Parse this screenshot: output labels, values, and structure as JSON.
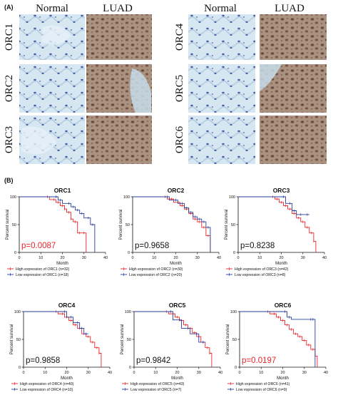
{
  "panel_a": {
    "label": "(A)",
    "column_headers": [
      "Normal",
      "LUAD",
      "Normal",
      "LUAD"
    ],
    "rows_left": [
      "ORC1",
      "ORC2",
      "ORC3"
    ],
    "rows_right": [
      "ORC4",
      "ORC5",
      "ORC6"
    ]
  },
  "panel_b": {
    "label": "(B)"
  },
  "colors": {
    "high": "#e8262a",
    "low": "#2a3d9a",
    "normal_tissue_bg": "#d6e7f2",
    "normal_tissue_cell": "#4a5ea8",
    "luad_tissue_bg": "#a9927f",
    "luad_tissue_cell": "#6e4a3e"
  },
  "chart_data": [
    {
      "type": "line",
      "title": "ORC1",
      "ylabel": "Percent survival",
      "xlabel": "Month",
      "xlim": [
        0,
        40
      ],
      "ylim": [
        0,
        100
      ],
      "xticks": [
        0,
        10,
        20,
        30,
        40
      ],
      "yticks": [
        0,
        50,
        100
      ],
      "pvalue": "p=0.0087",
      "pvalue_significant": true,
      "series": [
        {
          "name": "High expression of ORC1 (n=32)",
          "color": "high",
          "x": [
            0,
            14,
            17,
            19,
            21,
            22,
            24,
            25,
            27,
            29,
            31
          ],
          "y": [
            100,
            95,
            90,
            84,
            78,
            72,
            60,
            55,
            35,
            35,
            0
          ]
        },
        {
          "name": "Low expression of ORC1 (n=18)",
          "color": "low",
          "x": [
            0,
            18,
            20,
            24,
            26,
            28,
            30,
            33,
            35
          ],
          "y": [
            100,
            94,
            88,
            82,
            76,
            70,
            62,
            50,
            0
          ]
        }
      ]
    },
    {
      "type": "line",
      "title": "ORC2",
      "ylabel": "Percent survival",
      "xlabel": "Month",
      "xlim": [
        0,
        40
      ],
      "ylim": [
        0,
        100
      ],
      "xticks": [
        0,
        10,
        20,
        30,
        40
      ],
      "yticks": [
        0,
        50,
        100
      ],
      "pvalue": "p=0.9658",
      "pvalue_significant": false,
      "series": [
        {
          "name": "High expression of ORC2 (n=30)",
          "color": "high",
          "x": [
            0,
            16,
            19,
            22,
            24,
            26,
            28,
            30,
            32,
            34,
            36
          ],
          "y": [
            100,
            96,
            90,
            84,
            78,
            70,
            60,
            55,
            45,
            30,
            0
          ]
        },
        {
          "name": "Low expression of ORC2 (n=20)",
          "color": "low",
          "x": [
            0,
            17,
            21,
            24,
            26,
            28,
            30,
            32,
            34,
            36
          ],
          "y": [
            100,
            94,
            88,
            80,
            72,
            64,
            60,
            55,
            45,
            0
          ]
        }
      ]
    },
    {
      "type": "line",
      "title": "ORC3",
      "ylabel": "Percent survival",
      "xlabel": "Month",
      "xlim": [
        0,
        40
      ],
      "ylim": [
        0,
        100
      ],
      "xticks": [
        0,
        10,
        20,
        30,
        40
      ],
      "yticks": [
        0,
        50,
        100
      ],
      "pvalue": "p=0.8238",
      "pvalue_significant": false,
      "series": [
        {
          "name": "High expression of ORC3 (n=42)",
          "color": "high",
          "x": [
            0,
            17,
            19,
            21,
            23,
            25,
            27,
            29,
            31,
            33,
            35,
            36
          ],
          "y": [
            100,
            96,
            90,
            84,
            78,
            70,
            62,
            55,
            45,
            35,
            20,
            0
          ]
        },
        {
          "name": "Low expression of ORC3 (n=8)",
          "color": "low",
          "x": [
            0,
            22,
            25,
            27,
            30,
            33
          ],
          "y": [
            100,
            88,
            75,
            68,
            68,
            68
          ]
        }
      ]
    },
    {
      "type": "line",
      "title": "ORC4",
      "ylabel": "Percent survival",
      "xlabel": "Month",
      "xlim": [
        0,
        40
      ],
      "ylim": [
        0,
        100
      ],
      "xticks": [
        0,
        10,
        20,
        30,
        40
      ],
      "yticks": [
        0,
        50,
        100
      ],
      "pvalue": "p=0.9858",
      "pvalue_significant": false,
      "series": [
        {
          "name": "High expression of ORC4 (n=40)",
          "color": "high",
          "x": [
            0,
            16,
            19,
            21,
            23,
            25,
            27,
            29,
            31,
            33,
            35,
            36
          ],
          "y": [
            100,
            96,
            90,
            84,
            76,
            70,
            60,
            55,
            45,
            35,
            25,
            0
          ]
        },
        {
          "name": "Low expression of ORC4 (n=10)",
          "color": "low",
          "x": [
            0,
            20,
            23,
            26,
            28,
            30
          ],
          "y": [
            100,
            90,
            80,
            70,
            60,
            60
          ]
        }
      ]
    },
    {
      "type": "line",
      "title": "ORC5",
      "ylabel": "Percent survival",
      "xlabel": "Month",
      "xlim": [
        0,
        40
      ],
      "ylim": [
        0,
        100
      ],
      "xticks": [
        0,
        10,
        20,
        30,
        40
      ],
      "yticks": [
        0,
        50,
        100
      ],
      "pvalue": "p=0.9842",
      "pvalue_significant": false,
      "series": [
        {
          "name": "High expression of ORC5 (n=43)",
          "color": "high",
          "x": [
            0,
            16,
            19,
            21,
            23,
            25,
            27,
            29,
            31,
            33,
            35,
            36
          ],
          "y": [
            100,
            96,
            90,
            84,
            76,
            70,
            62,
            55,
            45,
            35,
            25,
            0
          ]
        },
        {
          "name": "Low expression of ORC5 (n=7)",
          "color": "low",
          "x": [
            0,
            18,
            22,
            26,
            30,
            33
          ],
          "y": [
            100,
            85,
            70,
            60,
            45,
            45
          ]
        }
      ]
    },
    {
      "type": "line",
      "title": "ORC6",
      "ylabel": "Percent survival",
      "xlabel": "Month",
      "xlim": [
        0,
        40
      ],
      "ylim": [
        0,
        100
      ],
      "xticks": [
        0,
        10,
        20,
        30,
        40
      ],
      "yticks": [
        0,
        50,
        100
      ],
      "pvalue": "p=0.0197",
      "pvalue_significant": true,
      "series": [
        {
          "name": "High expression of ORC6 (n=41)",
          "color": "high",
          "x": [
            0,
            14,
            17,
            19,
            21,
            23,
            25,
            27,
            29,
            31,
            33,
            35,
            36
          ],
          "y": [
            100,
            96,
            90,
            84,
            76,
            68,
            60,
            55,
            48,
            40,
            32,
            20,
            0
          ]
        },
        {
          "name": "Low expression of ORC6 (n=9)",
          "color": "low",
          "x": [
            0,
            22,
            24,
            34,
            35
          ],
          "y": [
            100,
            90,
            86,
            86,
            0
          ]
        }
      ]
    }
  ]
}
